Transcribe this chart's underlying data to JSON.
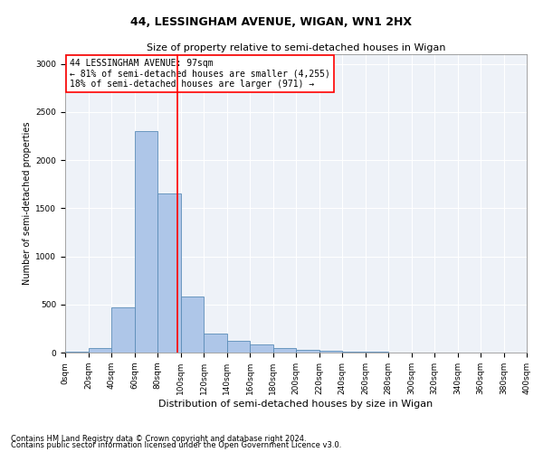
{
  "title1": "44, LESSINGHAM AVENUE, WIGAN, WN1 2HX",
  "title2": "Size of property relative to semi-detached houses in Wigan",
  "xlabel": "Distribution of semi-detached houses by size in Wigan",
  "ylabel": "Number of semi-detached properties",
  "property_size": 97,
  "bin_edges": [
    0,
    20,
    40,
    60,
    80,
    100,
    120,
    140,
    160,
    180,
    200,
    220,
    240,
    260,
    280,
    300,
    320,
    340,
    360,
    380,
    400
  ],
  "bar_heights": [
    5,
    50,
    470,
    2300,
    1650,
    580,
    200,
    120,
    80,
    50,
    30,
    15,
    8,
    5,
    3,
    2,
    1,
    1,
    0,
    0
  ],
  "bar_color": "#aec6e8",
  "bar_edge_color": "#5b8db8",
  "vline_color": "red",
  "vline_x": 97,
  "annotation_title": "44 LESSINGHAM AVENUE: 97sqm",
  "annotation_line1": "← 81% of semi-detached houses are smaller (4,255)",
  "annotation_line2": "18% of semi-detached houses are larger (971) →",
  "box_color": "red",
  "ylim": [
    0,
    3100
  ],
  "yticks": [
    0,
    500,
    1000,
    1500,
    2000,
    2500,
    3000
  ],
  "xtick_labels": [
    "0sqm",
    "20sqm",
    "40sqm",
    "60sqm",
    "80sqm",
    "100sqm",
    "120sqm",
    "140sqm",
    "160sqm",
    "180sqm",
    "200sqm",
    "220sqm",
    "240sqm",
    "260sqm",
    "280sqm",
    "300sqm",
    "320sqm",
    "340sqm",
    "360sqm",
    "380sqm",
    "400sqm"
  ],
  "footnote1": "Contains HM Land Registry data © Crown copyright and database right 2024.",
  "footnote2": "Contains public sector information licensed under the Open Government Licence v3.0.",
  "bg_color": "#eef2f8",
  "grid_color": "white",
  "title1_fontsize": 9,
  "title2_fontsize": 8,
  "xlabel_fontsize": 8,
  "ylabel_fontsize": 7,
  "tick_fontsize": 6.5,
  "annot_fontsize": 7,
  "footnote_fontsize": 6
}
